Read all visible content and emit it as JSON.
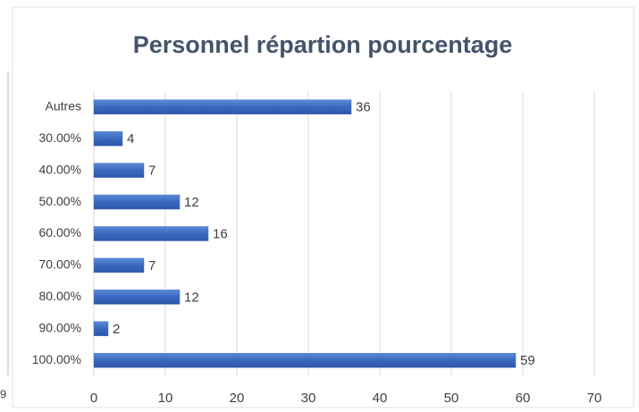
{
  "chart_data": {
    "type": "bar",
    "orientation": "horizontal",
    "title": "Personnel répartion pourcentage",
    "categories": [
      "Autres",
      "30.00%",
      "40.00%",
      "50.00%",
      "60.00%",
      "70.00%",
      "80.00%",
      "90.00%",
      "100.00%"
    ],
    "values": [
      36,
      4,
      7,
      12,
      16,
      7,
      12,
      2,
      59
    ],
    "color": "#4472c4",
    "xlim": [
      0,
      70
    ],
    "xticks": [
      0,
      10,
      20,
      30,
      40,
      50,
      60,
      70
    ],
    "grid": true,
    "annotations": [
      "9"
    ]
  }
}
